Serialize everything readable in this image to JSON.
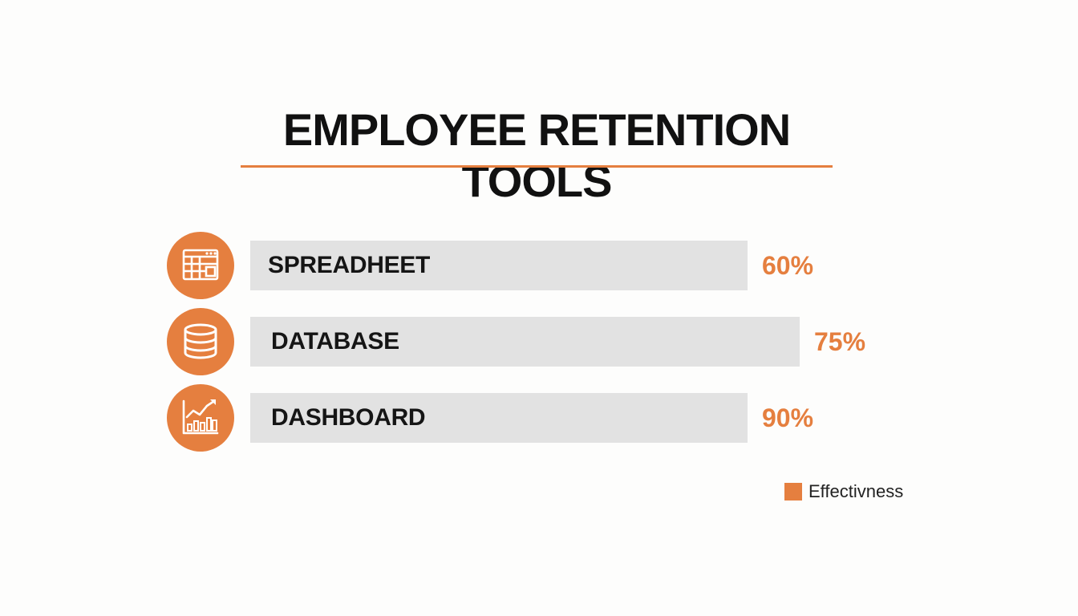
{
  "chart_data": {
    "type": "bar",
    "orientation": "horizontal",
    "title": "EMPLOYEE RETENTION TOOLS",
    "categories": [
      "SPREADHEET",
      "DATABASE",
      "DASHBOARD"
    ],
    "icons": [
      "spreadsheet-icon",
      "database-icon",
      "dashboard-chart-icon"
    ],
    "series": [
      {
        "name": "Effectivness",
        "values": [
          60,
          75,
          90
        ],
        "labels": [
          "60%",
          "75%",
          "90%"
        ]
      }
    ],
    "legend": {
      "label": "Effectivness",
      "position": "bottom-right"
    },
    "colors": {
      "accent": "#e57f3f",
      "bar": "#e2e2e2",
      "title": "#111111"
    },
    "grid": false
  }
}
